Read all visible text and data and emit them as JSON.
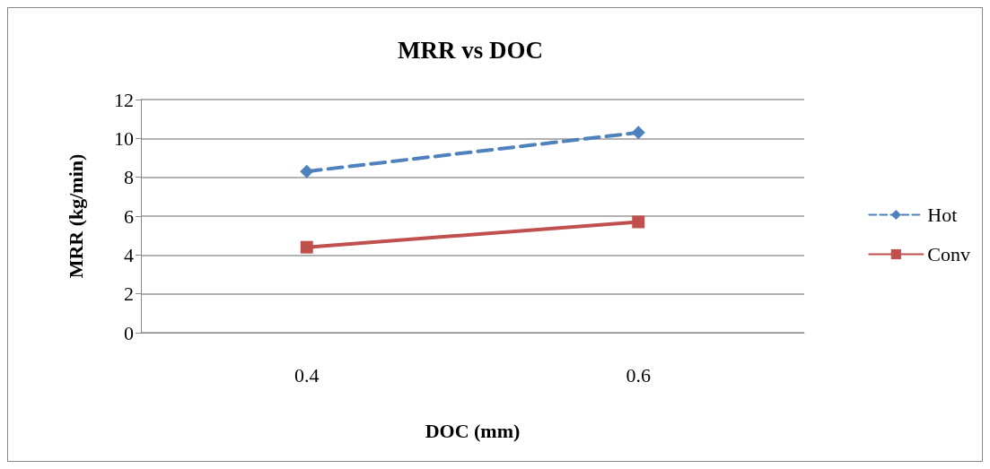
{
  "chart_data": {
    "type": "line",
    "title": "MRR vs DOC",
    "xlabel": "DOC (mm)",
    "ylabel": "MRR (kg/min)",
    "categories": [
      "0.4",
      "0.6"
    ],
    "series": [
      {
        "name": "Hot",
        "color": "#4f81bd",
        "values": [
          8.3,
          10.3
        ],
        "marker": "diamond",
        "line_style": "dashed"
      },
      {
        "name": "Conv",
        "color": "#c0504d",
        "values": [
          4.4,
          5.7
        ],
        "marker": "square",
        "line_style": "solid"
      }
    ],
    "ylim": [
      0,
      12
    ],
    "yticks": [
      0,
      2,
      4,
      6,
      8,
      10,
      12
    ],
    "grid": "y",
    "legend": "right"
  }
}
